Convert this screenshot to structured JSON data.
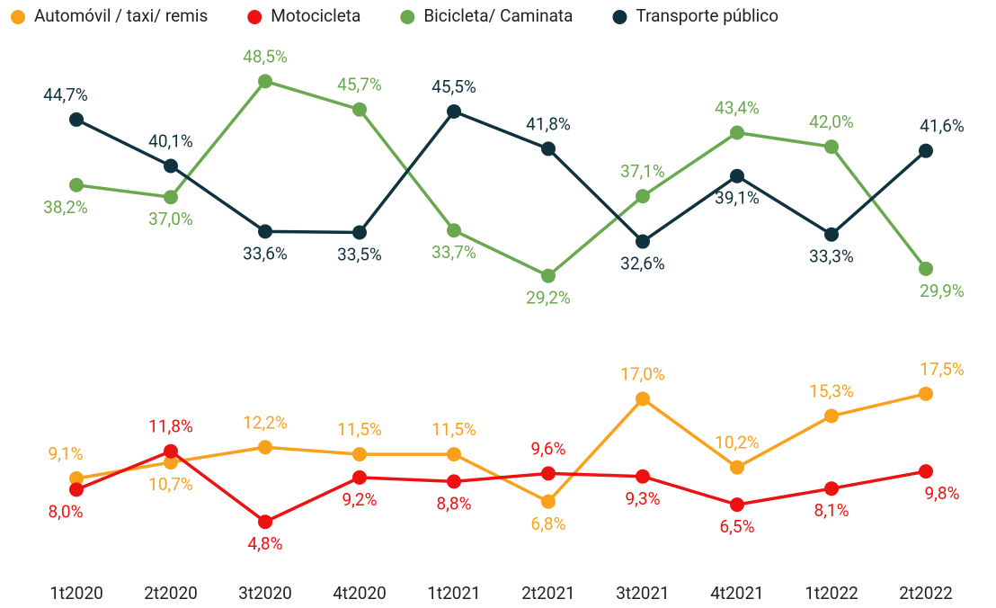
{
  "chart_data": {
    "type": "line",
    "categories": [
      "1t2020",
      "2t2020",
      "3t2020",
      "4t2020",
      "1t2021",
      "2t2021",
      "3t2021",
      "4t2021",
      "1t2022",
      "2t2022"
    ],
    "ylim": [
      0,
      50
    ],
    "legend": "top",
    "series": [
      {
        "name": "Automóvil / taxi/ remis",
        "color": "#f9a11b",
        "values": [
          9.1,
          10.7,
          12.2,
          11.5,
          11.5,
          6.8,
          17.0,
          10.2,
          15.3,
          17.5
        ],
        "value_labels": [
          "9,1%",
          "10,7%",
          "12,2%",
          "11,5%",
          "11,5%",
          "6,8%",
          "17,0%",
          "10,2%",
          "15,3%",
          "17,5%"
        ]
      },
      {
        "name": "Motocicleta",
        "color": "#ee1111",
        "values": [
          8.0,
          11.8,
          4.8,
          9.2,
          8.8,
          9.6,
          9.3,
          6.5,
          8.1,
          9.8
        ],
        "value_labels": [
          "8,0%",
          "11,8%",
          "4,8%",
          "9,2%",
          "8,8%",
          "9,6%",
          "9,3%",
          "6,5%",
          "8,1%",
          "9,8%"
        ]
      },
      {
        "name": "Bicicleta/ Caminata",
        "color": "#6aa84f",
        "values": [
          38.2,
          37.0,
          48.5,
          45.7,
          33.7,
          29.2,
          37.1,
          43.4,
          42.0,
          29.9
        ],
        "value_labels": [
          "38,2%",
          "37,0%",
          "48,5%",
          "45,7%",
          "33,7%",
          "29,2%",
          "37,1%",
          "43,4%",
          "42,0%",
          "29,9%"
        ]
      },
      {
        "name": "Transporte público",
        "color": "#10323f",
        "values": [
          44.7,
          40.1,
          33.6,
          33.5,
          45.5,
          41.8,
          32.6,
          39.1,
          33.3,
          41.6
        ],
        "value_labels": [
          "44,7%",
          "40,1%",
          "33,6%",
          "33,5%",
          "45,5%",
          "41,8%",
          "32,6%",
          "39,1%",
          "33,3%",
          "41,6%"
        ]
      }
    ]
  }
}
